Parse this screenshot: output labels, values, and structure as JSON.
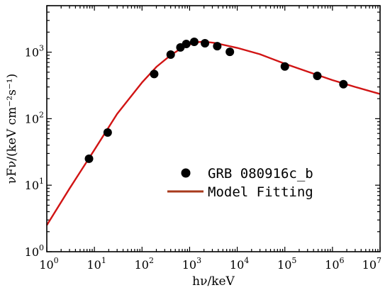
{
  "chart_data": {
    "type": "scatter",
    "x_scale": "log",
    "y_scale": "log",
    "xlim": [
      1,
      10000000
    ],
    "ylim": [
      1,
      5000
    ],
    "xlabel": "hν/keV",
    "ylabel": "νFν/(keV cm⁻²s⁻¹)",
    "x_tick_values": [
      1,
      10,
      100,
      1000,
      10000,
      100000,
      1000000,
      10000000
    ],
    "x_tick_labels": [
      {
        "base": "10",
        "exp": "0"
      },
      {
        "base": "10",
        "exp": "1"
      },
      {
        "base": "10",
        "exp": "2"
      },
      {
        "base": "10",
        "exp": "3"
      },
      {
        "base": "10",
        "exp": "4"
      },
      {
        "base": "10",
        "exp": "5"
      },
      {
        "base": "10",
        "exp": "6"
      },
      {
        "base": "10",
        "exp": "7"
      }
    ],
    "y_tick_values": [
      1,
      10,
      100,
      1000
    ],
    "y_tick_labels": [
      {
        "base": "10",
        "exp": "0"
      },
      {
        "base": "10",
        "exp": "1"
      },
      {
        "base": "10",
        "exp": "2"
      },
      {
        "base": "10",
        "exp": "3"
      }
    ],
    "legend_position": "center-right",
    "series": [
      {
        "name": "GRB 080916c_b",
        "kind": "scatter",
        "color": "#000000",
        "points": [
          {
            "x": 7.7,
            "y": 25
          },
          {
            "x": 19,
            "y": 62
          },
          {
            "x": 180,
            "y": 470
          },
          {
            "x": 400,
            "y": 920
          },
          {
            "x": 640,
            "y": 1180
          },
          {
            "x": 850,
            "y": 1330
          },
          {
            "x": 1250,
            "y": 1430
          },
          {
            "x": 2100,
            "y": 1360
          },
          {
            "x": 3800,
            "y": 1230
          },
          {
            "x": 7000,
            "y": 1010
          },
          {
            "x": 100000,
            "y": 610
          },
          {
            "x": 480000,
            "y": 440
          },
          {
            "x": 1700000,
            "y": 330
          }
        ]
      },
      {
        "name": "Model Fitting",
        "kind": "line",
        "color": "#d11414",
        "legend_color": "#a83a1c",
        "points": [
          {
            "x": 1,
            "y": 2.5
          },
          {
            "x": 3,
            "y": 8.9
          },
          {
            "x": 10,
            "y": 34
          },
          {
            "x": 30,
            "y": 118
          },
          {
            "x": 100,
            "y": 350
          },
          {
            "x": 200,
            "y": 600
          },
          {
            "x": 400,
            "y": 900
          },
          {
            "x": 700,
            "y": 1170
          },
          {
            "x": 1300,
            "y": 1400
          },
          {
            "x": 2000,
            "y": 1440
          },
          {
            "x": 3500,
            "y": 1370
          },
          {
            "x": 10000,
            "y": 1160
          },
          {
            "x": 30000,
            "y": 930
          },
          {
            "x": 100000,
            "y": 670
          },
          {
            "x": 300000,
            "y": 510
          },
          {
            "x": 1000000,
            "y": 380
          },
          {
            "x": 3000000,
            "y": 300
          },
          {
            "x": 10000000,
            "y": 235
          }
        ]
      }
    ]
  }
}
